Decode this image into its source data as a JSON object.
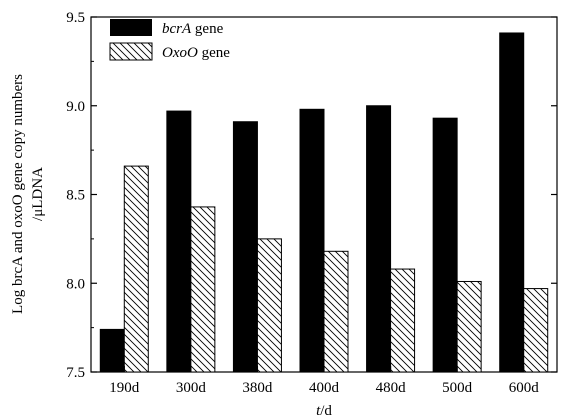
{
  "chart_data": {
    "type": "bar",
    "categories": [
      "190d",
      "300d",
      "380d",
      "400d",
      "480d",
      "500d",
      "600d"
    ],
    "series": [
      {
        "name_italic": "bcrA",
        "name_rest": " gene",
        "fill": "solid",
        "color": "#000000",
        "values": [
          7.74,
          8.97,
          8.91,
          8.98,
          9.0,
          8.93,
          9.41
        ]
      },
      {
        "name_italic": "OxoO",
        "name_rest": " gene",
        "fill": "hatch",
        "color": "#000000",
        "values": [
          8.66,
          8.43,
          8.25,
          8.18,
          8.08,
          8.01,
          7.97
        ]
      }
    ],
    "ylim": [
      7.5,
      9.5
    ],
    "yticks": [
      "7.5",
      "8.0",
      "8.5",
      "9.0",
      "9.5"
    ],
    "ylabel_line1": "Log brcA and oxoO gene copy numbers",
    "ylabel_line2": "/μLDNA",
    "xlabel_italic": "t",
    "xlabel_rest": "/d",
    "legend_position": "top-left"
  }
}
